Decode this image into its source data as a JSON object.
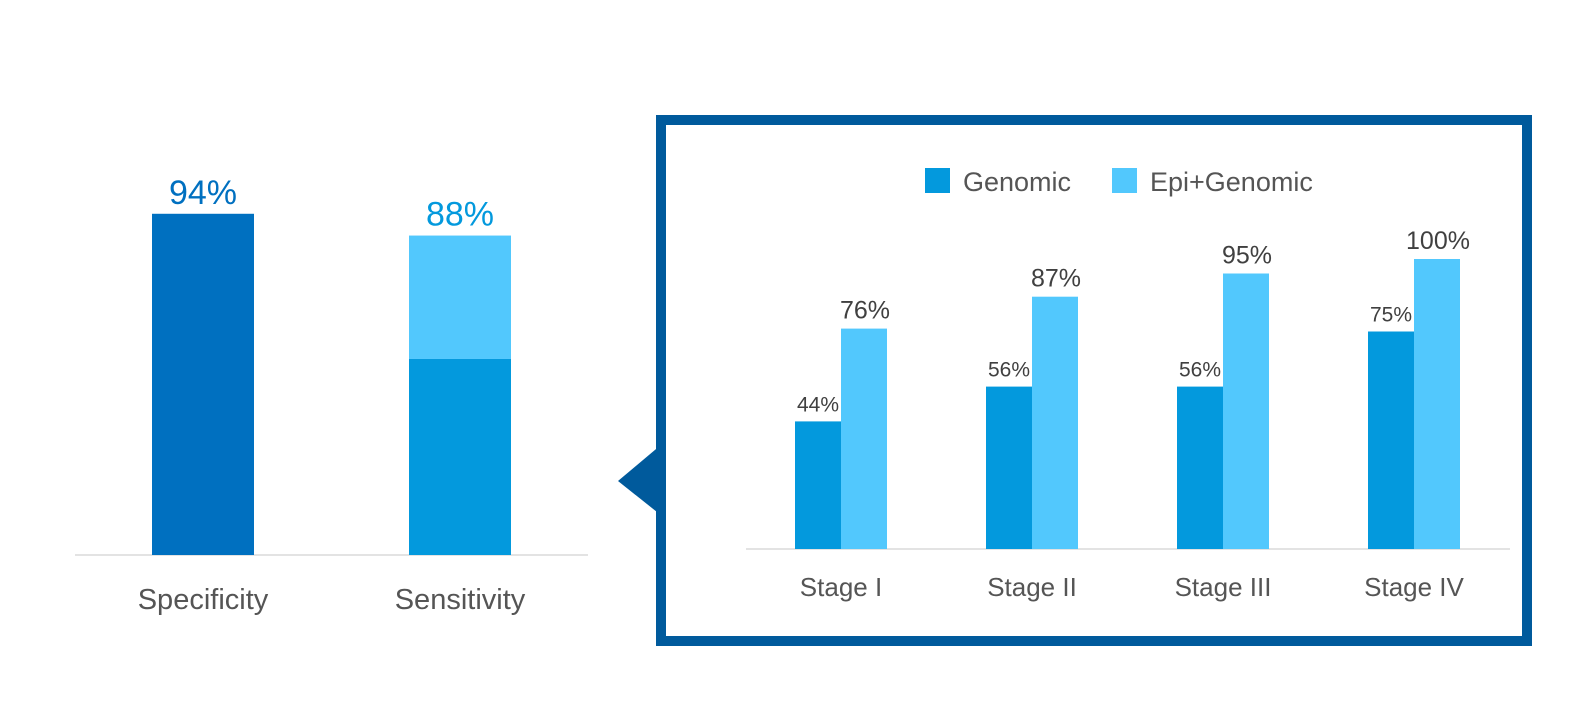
{
  "colors": {
    "specificity": "#0070c0",
    "genomic": "#0399dd",
    "epi_genomic": "#52c8fd",
    "frame": "#005a9c",
    "axis_text": "#555555",
    "value_text": "#404040",
    "baseline": "#e3e3e3"
  },
  "chart_data": [
    {
      "type": "bar",
      "categories": [
        "Specificity",
        "Sensitivity"
      ],
      "values": [
        94,
        88
      ],
      "value_labels": [
        "94%",
        "88%"
      ],
      "stacked_segments": {
        "Sensitivity": {
          "genomic": 54,
          "epi_genomic_added": 34
        }
      },
      "ylim": [
        0,
        100
      ],
      "xlabel": "",
      "ylabel": ""
    },
    {
      "type": "bar",
      "categories": [
        "Stage I",
        "Stage II",
        "Stage III",
        "Stage IV"
      ],
      "series": [
        {
          "name": "Genomic",
          "values": [
            44,
            56,
            56,
            75
          ],
          "labels": [
            "44%",
            "56%",
            "56%",
            "75%"
          ]
        },
        {
          "name": "Epi+Genomic",
          "values": [
            76,
            87,
            95,
            100
          ],
          "labels": [
            "76%",
            "87%",
            "95%",
            "100%"
          ]
        }
      ],
      "ylim": [
        0,
        100
      ],
      "legend": "top-center",
      "xlabel": "",
      "ylabel": ""
    }
  ]
}
